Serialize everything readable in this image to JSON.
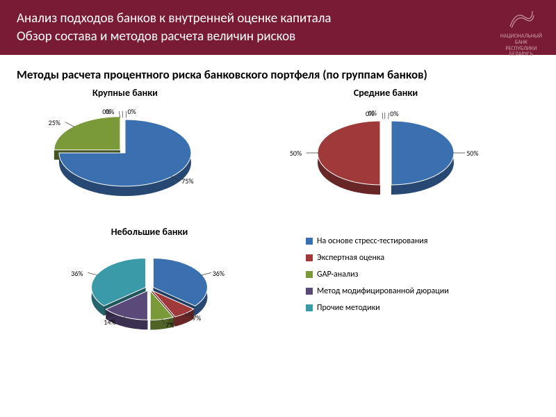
{
  "header": {
    "title_line1": "Анализ подходов банков к внутренней оценке капитала",
    "title_line2": "Обзор состава и методов расчета величин рисков",
    "background_color": "#7a1b35",
    "text_color": "#ffffff",
    "logo_text1": "НАЦИОНАЛЬНЫЙ",
    "logo_text2": "БАНК",
    "logo_text3": "РЕСПУБЛИКИ",
    "logo_text4": "БЕЛАРУСЬ"
  },
  "subtitle": "Методы расчета процентного риска банковского портфеля (по группам банков)",
  "palette": {
    "stress": "#3a6fb0",
    "expert": "#a03a3a",
    "gap": "#7a9a3a",
    "duration": "#5a4a7a",
    "other": "#3a9aa8"
  },
  "legend": {
    "items": [
      {
        "key": "stress",
        "label": "На основе стресс-тестирования"
      },
      {
        "key": "expert",
        "label": "Экспертная оценка"
      },
      {
        "key": "gap",
        "label": "GAP-анализ"
      },
      {
        "key": "duration",
        "label": "Метод модифицированной дюрации"
      },
      {
        "key": "other",
        "label": "Прочие методики"
      }
    ]
  },
  "charts": {
    "large": {
      "title": "Крупные банки",
      "type": "pie-3d-exploded",
      "slices": [
        {
          "key": "stress",
          "value": 75,
          "label": "75%",
          "explode": 0
        },
        {
          "key": "expert",
          "value": 0,
          "label": "0%",
          "explode": 6
        },
        {
          "key": "gap",
          "value": 25,
          "label": "25%",
          "explode": 10
        },
        {
          "key": "duration",
          "value": 0,
          "label": "0%",
          "explode": 6
        },
        {
          "key": "other",
          "value": 0,
          "label": "0%",
          "explode": 6
        }
      ]
    },
    "medium": {
      "title": "Средние банки",
      "type": "pie-3d-exploded",
      "slices": [
        {
          "key": "stress",
          "value": 50,
          "label": "50%",
          "explode": 8
        },
        {
          "key": "expert",
          "value": 50,
          "label": "50%",
          "explode": 8
        },
        {
          "key": "gap",
          "value": 0,
          "label": "0%",
          "explode": 6
        },
        {
          "key": "duration",
          "value": 0,
          "label": "0%",
          "explode": 6
        },
        {
          "key": "other",
          "value": 0,
          "label": "0%",
          "explode": 6
        }
      ]
    },
    "small": {
      "title": "Небольшие банки",
      "type": "pie-3d-exploded",
      "slices": [
        {
          "key": "stress",
          "value": 36,
          "label": "36%",
          "explode": 6
        },
        {
          "key": "expert",
          "value": 7,
          "label": "7%",
          "explode": 6
        },
        {
          "key": "gap",
          "value": 7,
          "label": "7%",
          "explode": 6
        },
        {
          "key": "duration",
          "value": 14,
          "label": "14%",
          "explode": 6
        },
        {
          "key": "other",
          "value": 36,
          "label": "36%",
          "explode": 6
        }
      ]
    }
  },
  "style": {
    "pie_depth": 14,
    "chart_title_fontsize": 14,
    "slice_label_fontsize": 10,
    "legend_fontsize": 12
  }
}
